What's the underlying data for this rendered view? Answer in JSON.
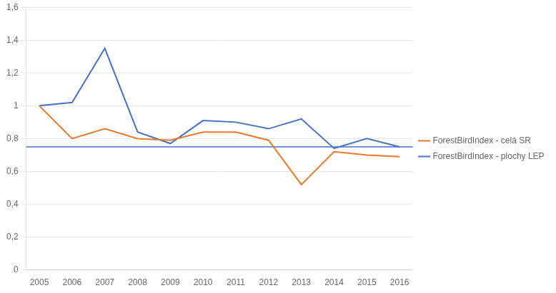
{
  "chart_data": {
    "type": "line",
    "x": [
      2005,
      2006,
      2007,
      2008,
      2009,
      2010,
      2011,
      2012,
      2013,
      2014,
      2015,
      2016
    ],
    "series": [
      {
        "name": "ForestBirdIndex - celá SR",
        "color": "#E8782A",
        "values": [
          1.0,
          0.8,
          0.86,
          0.8,
          0.79,
          0.84,
          0.84,
          0.79,
          0.52,
          0.72,
          0.7,
          0.69
        ]
      },
      {
        "name": "ForestBirdIndex - plochy LEP",
        "color": "#4472C4",
        "values": [
          1.0,
          1.02,
          1.35,
          0.84,
          0.77,
          0.91,
          0.9,
          0.86,
          0.92,
          0.74,
          0.8,
          0.75
        ]
      }
    ],
    "reference_line": {
      "y": 0.75,
      "color": "#4472C4"
    },
    "xlim": [
      2004.6,
      2016.4
    ],
    "xticks": [
      2005,
      2006,
      2007,
      2008,
      2009,
      2010,
      2011,
      2012,
      2013,
      2014,
      2015,
      2016
    ],
    "ylim": [
      0,
      1.6
    ],
    "yticks": [
      0,
      {
        "value": 0.2,
        "label": "0,2"
      },
      {
        "value": 0.4,
        "label": "0,4"
      },
      {
        "value": 0.6,
        "label": "0,6"
      },
      {
        "value": 0.8,
        "label": "0,8"
      },
      1,
      {
        "value": 1.2,
        "label": "1,2"
      },
      {
        "value": 1.4,
        "label": "1,4"
      },
      {
        "value": 1.6,
        "label": "1,6"
      }
    ],
    "grid": "y",
    "legend": "right"
  }
}
